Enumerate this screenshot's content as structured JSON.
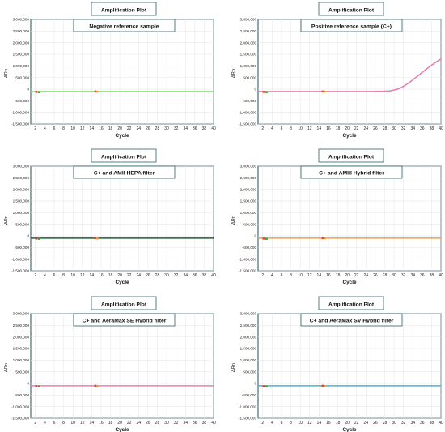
{
  "chart_data": [
    {
      "type": "line",
      "header": "Amplification Plot",
      "title": "Negative reference sample",
      "xlabel": "Cycle",
      "ylabel": "ΔRn",
      "xlim": [
        1,
        40
      ],
      "ylim": [
        -1500000,
        3000000
      ],
      "x_ticks": [
        2,
        4,
        6,
        8,
        10,
        12,
        14,
        16,
        18,
        20,
        22,
        24,
        26,
        28,
        30,
        32,
        34,
        36,
        38,
        40
      ],
      "y_ticks": [
        -1500000,
        -1000000,
        -500000,
        0,
        500000,
        1000000,
        1500000,
        2000000,
        2500000,
        3000000
      ],
      "y_tick_labels": [
        "-1,500,000",
        "-1,000,000",
        "-500,000",
        "0",
        "500,000",
        "1,000,000",
        "1,500,000",
        "2,000,000",
        "2,500,000",
        "3,000,000"
      ],
      "grid": true,
      "series": [
        {
          "color": "#8fe07a",
          "x": [
            1,
            5,
            10,
            15,
            20,
            25,
            30,
            35,
            40
          ],
          "y": [
            -100000,
            -100000,
            -100000,
            -100000,
            -100000,
            -100000,
            -100000,
            -100000,
            -100000
          ]
        }
      ],
      "markers": [
        {
          "color": "#e83a2a",
          "x": 2.2,
          "y": -120000
        },
        {
          "color": "#2ea82e",
          "x": 2.8,
          "y": -130000
        },
        {
          "color": "#e83a2a",
          "x": 14.8,
          "y": -100000
        },
        {
          "color": "#f0a020",
          "x": 15.2,
          "y": -110000
        }
      ]
    },
    {
      "type": "line",
      "header": "Amplification Plot",
      "title": "Positive reference sample (C+)",
      "xlabel": "Cycle",
      "ylabel": "ΔRn",
      "xlim": [
        1,
        40
      ],
      "ylim": [
        -1500000,
        3000000
      ],
      "x_ticks": [
        2,
        4,
        6,
        8,
        10,
        12,
        14,
        16,
        18,
        20,
        22,
        24,
        26,
        28,
        30,
        32,
        34,
        36,
        38,
        40
      ],
      "y_ticks": [
        -1500000,
        -1000000,
        -500000,
        0,
        500000,
        1000000,
        1500000,
        2000000,
        2500000,
        3000000
      ],
      "y_tick_labels": [
        "-1,500,000",
        "-1,000,000",
        "-500,000",
        "0",
        "500,000",
        "1,000,000",
        "1,500,000",
        "2,000,000",
        "2,500,000",
        "3,000,000"
      ],
      "grid": true,
      "series": [
        {
          "color": "#e87fb0",
          "x": [
            1,
            5,
            10,
            15,
            20,
            25,
            28,
            29,
            30,
            31,
            32,
            33,
            34,
            35,
            36,
            37,
            38,
            39,
            40
          ],
          "y": [
            -100000,
            -100000,
            -100000,
            -100000,
            -100000,
            -100000,
            -90000,
            -80000,
            -40000,
            20000,
            120000,
            250000,
            400000,
            560000,
            720000,
            880000,
            1030000,
            1170000,
            1300000
          ]
        }
      ],
      "markers": [
        {
          "color": "#e83a2a",
          "x": 2.2,
          "y": -120000
        },
        {
          "color": "#2ea82e",
          "x": 2.8,
          "y": -130000
        },
        {
          "color": "#e83a2a",
          "x": 14.8,
          "y": -100000
        },
        {
          "color": "#f0a020",
          "x": 15.2,
          "y": -110000
        }
      ]
    },
    {
      "type": "line",
      "header": "Amplification Plot",
      "title": "C+ and AMII HEPA filter",
      "xlabel": "Cycle",
      "ylabel": "ΔRn",
      "xlim": [
        1,
        40
      ],
      "ylim": [
        -1500000,
        3000000
      ],
      "x_ticks": [
        2,
        4,
        6,
        8,
        10,
        12,
        14,
        16,
        18,
        20,
        22,
        24,
        26,
        28,
        30,
        32,
        34,
        36,
        38,
        40
      ],
      "y_ticks": [
        -1500000,
        -1000000,
        -500000,
        0,
        500000,
        1000000,
        1500000,
        2000000,
        2500000,
        3000000
      ],
      "y_tick_labels": [
        "-1,500,000",
        "-1,000,000",
        "-500,000",
        "0",
        "500,000",
        "1,000,000",
        "1,500,000",
        "2,000,000",
        "2,500,000",
        "3,000,000"
      ],
      "grid": true,
      "series": [
        {
          "color": "#1e5e2a",
          "x": [
            1,
            5,
            10,
            15,
            20,
            25,
            30,
            35,
            40
          ],
          "y": [
            -100000,
            -100000,
            -100000,
            -100000,
            -100000,
            -100000,
            -100000,
            -100000,
            -100000
          ]
        }
      ],
      "markers": [
        {
          "color": "#e83a2a",
          "x": 2.2,
          "y": -120000
        },
        {
          "color": "#2ea82e",
          "x": 2.8,
          "y": -130000
        },
        {
          "color": "#e83a2a",
          "x": 14.8,
          "y": -100000
        },
        {
          "color": "#f0a020",
          "x": 15.2,
          "y": -110000
        }
      ]
    },
    {
      "type": "line",
      "header": "Amplification Plot",
      "title": "C+ and AMIII Hybrid filter",
      "xlabel": "Cycle",
      "ylabel": "ΔRn",
      "xlim": [
        1,
        40
      ],
      "ylim": [
        -1500000,
        3000000
      ],
      "x_ticks": [
        2,
        4,
        6,
        8,
        10,
        12,
        14,
        16,
        18,
        20,
        22,
        24,
        26,
        28,
        30,
        32,
        34,
        36,
        38,
        40
      ],
      "y_ticks": [
        -1500000,
        -1000000,
        -500000,
        0,
        500000,
        1000000,
        1500000,
        2000000,
        2500000,
        3000000
      ],
      "y_tick_labels": [
        "-1,500,000",
        "-1,000,000",
        "-500,000",
        "0",
        "500,000",
        "1,000,000",
        "1,500,000",
        "2,000,000",
        "2,500,000",
        "3,000,000"
      ],
      "grid": true,
      "series": [
        {
          "color": "#f0a050",
          "x": [
            1,
            5,
            10,
            15,
            20,
            25,
            30,
            35,
            40
          ],
          "y": [
            -100000,
            -100000,
            -100000,
            -100000,
            -100000,
            -100000,
            -100000,
            -100000,
            -100000
          ]
        }
      ],
      "markers": [
        {
          "color": "#e83a2a",
          "x": 2.2,
          "y": -120000
        },
        {
          "color": "#2ea82e",
          "x": 2.8,
          "y": -130000
        },
        {
          "color": "#e83a2a",
          "x": 14.8,
          "y": -100000
        },
        {
          "color": "#f0a020",
          "x": 15.2,
          "y": -110000
        }
      ]
    },
    {
      "type": "line",
      "header": "Amplification Plot",
      "title": "C+ and AeraMax SE Hybrid filter",
      "xlabel": "Cycle",
      "ylabel": "ΔRn",
      "xlim": [
        1,
        40
      ],
      "ylim": [
        -1500000,
        3000000
      ],
      "x_ticks": [
        2,
        4,
        6,
        8,
        10,
        12,
        14,
        16,
        18,
        20,
        22,
        24,
        26,
        28,
        30,
        32,
        34,
        36,
        38,
        40
      ],
      "y_ticks": [
        -1500000,
        -1000000,
        -500000,
        0,
        500000,
        1000000,
        1500000,
        2000000,
        2500000,
        3000000
      ],
      "y_tick_labels": [
        "-1,500,000",
        "-1,000,000",
        "-500,000",
        "0",
        "500,000",
        "1,000,000",
        "1,500,000",
        "2,000,000",
        "2,500,000",
        "3,000,000"
      ],
      "grid": true,
      "series": [
        {
          "color": "#f07ab8",
          "x": [
            1,
            5,
            10,
            15,
            20,
            25,
            30,
            35,
            40
          ],
          "y": [
            -100000,
            -100000,
            -100000,
            -100000,
            -100000,
            -100000,
            -100000,
            -100000,
            -100000
          ]
        }
      ],
      "markers": [
        {
          "color": "#e83a2a",
          "x": 2.2,
          "y": -120000
        },
        {
          "color": "#2ea82e",
          "x": 2.8,
          "y": -130000
        },
        {
          "color": "#e83a2a",
          "x": 14.8,
          "y": -100000
        },
        {
          "color": "#f0a020",
          "x": 15.2,
          "y": -110000
        }
      ]
    },
    {
      "type": "line",
      "header": "Amplification Plot",
      "title": "C+ and AeraMax SV Hybrid filter",
      "xlabel": "Cycle",
      "ylabel": "ΔRn",
      "xlim": [
        1,
        40
      ],
      "ylim": [
        -1500000,
        3000000
      ],
      "x_ticks": [
        2,
        4,
        6,
        8,
        10,
        12,
        14,
        16,
        18,
        20,
        22,
        24,
        26,
        28,
        30,
        32,
        34,
        36,
        38,
        40
      ],
      "y_ticks": [
        -1500000,
        -1000000,
        -500000,
        0,
        500000,
        1000000,
        1500000,
        2000000,
        2500000,
        3000000
      ],
      "y_tick_labels": [
        "-1,500,000",
        "-1,000,000",
        "-500,000",
        "0",
        "500,000",
        "1,000,000",
        "1,500,000",
        "2,000,000",
        "2,500,000",
        "3,000,000"
      ],
      "grid": true,
      "series": [
        {
          "color": "#3fb8d8",
          "x": [
            1,
            5,
            10,
            15,
            20,
            25,
            30,
            35,
            40
          ],
          "y": [
            -100000,
            -100000,
            -100000,
            -100000,
            -100000,
            -100000,
            -100000,
            -100000,
            -100000
          ]
        }
      ],
      "markers": [
        {
          "color": "#e83a2a",
          "x": 2.2,
          "y": -120000
        },
        {
          "color": "#2ea82e",
          "x": 2.8,
          "y": -130000
        },
        {
          "color": "#e83a2a",
          "x": 14.8,
          "y": -100000
        },
        {
          "color": "#f0a020",
          "x": 15.2,
          "y": -110000
        }
      ]
    }
  ]
}
